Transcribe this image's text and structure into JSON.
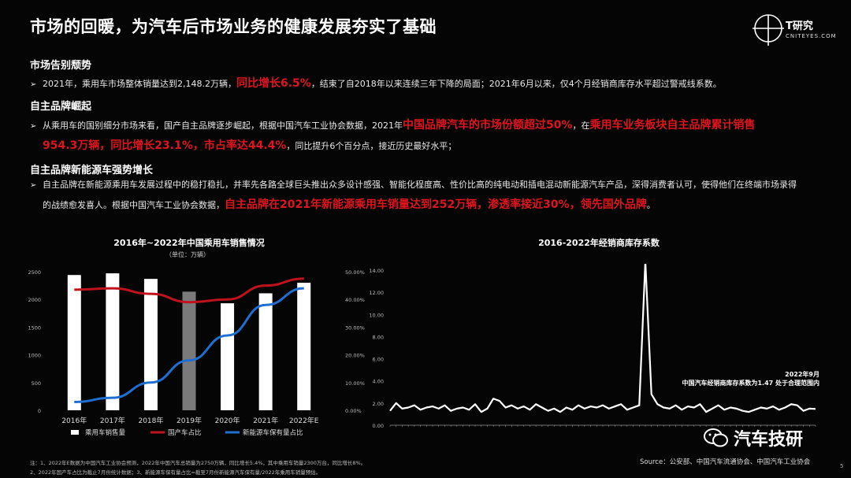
{
  "header": {
    "title": "市场的回暖，为汽车后市场业务的健康发展夯实了基础",
    "logo_brand": "T研究",
    "logo_sub": "CNITEYES.COM"
  },
  "sections": [
    {
      "heading": "市场告别颓势",
      "line1_pre": "2021年，乘用车市场整体销量达到2,148.2万辆，",
      "line1_hl": "同比增长6.5%",
      "line1_post": "，结束了自2018年以来连续三年下降的局面；2021年6月以来，仅4个月经销商库存水平超过警戒线系数。"
    },
    {
      "heading": "自主品牌崛起",
      "line1_pre": "从乘用车的国别细分市场来看，国产自主品牌逐步崛起，根据中国汽车工业协会数据，2021年",
      "line1_hl": "中国品牌汽车的市场份额超过50%",
      "line1_mid": "，在",
      "line1_hl2": "乘用车业务板块自主品牌累计销售",
      "line2_hl": "954.3万辆，同比增长23.1%，市占率达44.4%",
      "line2_post": "，同比提升6个百分点，接近历史最好水平；"
    },
    {
      "heading": "自主品牌新能源车强势增长",
      "line1_pre": "自主品牌在新能源乘用车发展过程中的稳打稳扎，并率先各路全球巨头推出众多设计感强、智能化程度高、性价比高的纯电动和插电混动新能源汽车产品，深得消费者认可，使得他们在终端市场录得",
      "line2_pre": "的战绩愈发喜人。根据中国汽车工业协会数据，",
      "line2_hl": "自主品牌在2021年新能源乘用车销量达到252万辆，渗透率接近30%，领先国外品牌",
      "line2_post": "。"
    }
  ],
  "chart_data": [
    {
      "type": "bar",
      "title": "2016年~2022年中国乘用车销售情况",
      "unit": "（单位：万辆）",
      "categories": [
        "2016年",
        "2017年",
        "2018年",
        "2019年",
        "2020年",
        "2021年",
        "2022年E"
      ],
      "y_ticks": [
        "0",
        "500",
        "1000",
        "1500",
        "2000",
        "2500"
      ],
      "y2_ticks": [
        "0.00%",
        "10.00%",
        "20.00%",
        "30.00%",
        "40.00%",
        "50.00%"
      ],
      "ylim": [
        0,
        2500
      ],
      "y2lim": [
        0,
        50
      ],
      "series": [
        {
          "name": "乘用车销售量",
          "kind": "bar",
          "values": [
            2440,
            2470,
            2370,
            2140,
            1930,
            2110,
            2300
          ],
          "color": "#ffffff",
          "highlight_index": 3,
          "highlight_color": "#7a7a7a"
        },
        {
          "name": "国产车占比",
          "kind": "line",
          "axis": "y2",
          "values": [
            43.5,
            44,
            42,
            39,
            40,
            45,
            47.5
          ],
          "color": "#c0121c"
        },
        {
          "name": "新能源车保有量占比",
          "kind": "line",
          "axis": "y2",
          "values": [
            3,
            4.5,
            10,
            18,
            27,
            38,
            44
          ],
          "color": "#1f6fd1"
        }
      ]
    },
    {
      "type": "line",
      "title": "2016-2022年经销商库存系数",
      "y_ticks": [
        "0.00",
        "2.00",
        "4.00",
        "6.00",
        "8.00",
        "10.00",
        "12.00",
        "14.00"
      ],
      "ylim": [
        0,
        14
      ],
      "series": [
        {
          "name": "经销商库存系数",
          "color": "#ffffff",
          "values": [
            1.3,
            2.0,
            1.5,
            1.6,
            1.8,
            1.4,
            1.6,
            1.7,
            1.5,
            1.8,
            1.3,
            1.5,
            1.6,
            1.4,
            1.9,
            1.2,
            1.5,
            2.4,
            2.2,
            1.6,
            1.8,
            1.5,
            1.7,
            1.4,
            1.9,
            1.6,
            1.3,
            1.5,
            1.2,
            1.6,
            1.4,
            1.8,
            1.5,
            1.7,
            1.6,
            1.8,
            1.5,
            1.7,
            1.9,
            1.4,
            1.6,
            1.8,
            14.8,
            2.8,
            1.9,
            1.6,
            1.5,
            1.8,
            1.4,
            1.7,
            1.6,
            1.9,
            1.2,
            1.5,
            1.8,
            1.4,
            1.6,
            1.5,
            1.3,
            1.2,
            1.4,
            1.6,
            1.5,
            1.7,
            1.4,
            1.6,
            1.9,
            1.8,
            1.3,
            1.5,
            1.47
          ]
        }
      ],
      "annotation_line1": "2022年9月",
      "annotation_line2": "中国汽车经销商库存系数为1.47 处于合理范围内"
    }
  ],
  "notes": {
    "line1": "注：1、2022年E数据为中国汽车工业协会预测，2022年中国汽车总销量为2750万辆，同比增长5.4%，其中乘用车销量2300万台，同比增长8%。",
    "line2": "2、2022年国产车占比为截止7月份统计数据；3、新能源车保有量占比=截至7月份新能源汽车保有量/2022年乘用车销量预估。"
  },
  "source": "Source：公安部、中国汽车流通协会、中国汽车工业协会",
  "watermark": "汽车技研",
  "page_number": "5"
}
